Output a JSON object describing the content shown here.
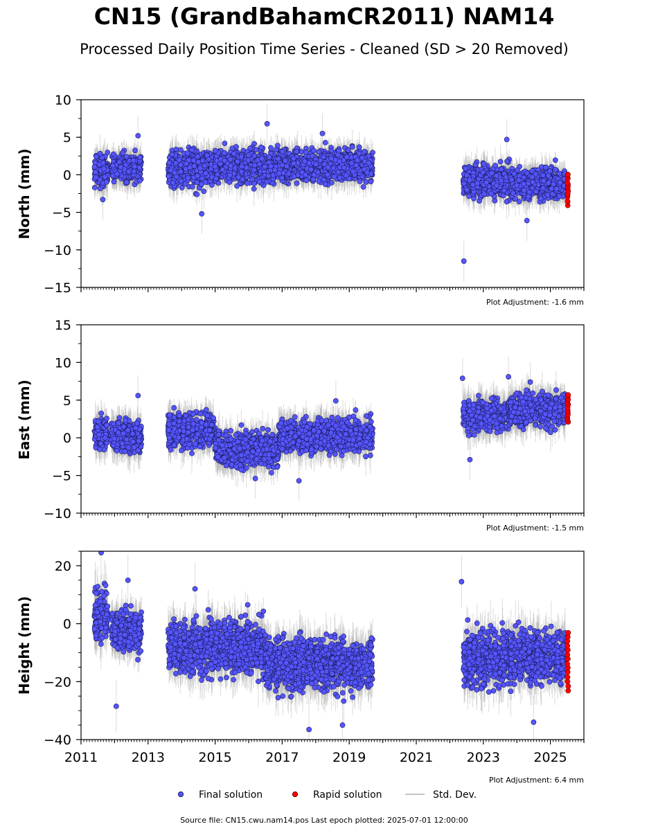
{
  "title": "CN15 (GrandBahamCR2011) NAM14",
  "subtitle": "Processed Daily Position Time Series - Cleaned (SD > 20 Removed)",
  "source_note": "Source file: CN15.cwu.nam14.pos  Last epoch plotted: 2025-07-01 12:00:00",
  "legend": {
    "final": "Final solution",
    "rapid": "Rapid solution",
    "std": "Std. Dev."
  },
  "colors": {
    "final_fill": "#5555ff",
    "final_edge": "#1a1a55",
    "rapid_fill": "#ff0000",
    "rapid_edge": "#7a0000",
    "std_dev": "#b0b0b0",
    "axis": "#000000"
  },
  "chart_data": [
    {
      "type": "scatter",
      "ylabel": "North (mm)",
      "ylim": [
        -15,
        10
      ],
      "yticks": [
        -15,
        -10,
        -5,
        0,
        5,
        10
      ],
      "xlim": [
        2011,
        2026
      ],
      "adjustment": "Plot Adjustment: -1.6 mm",
      "segments": [
        {
          "from": 2011.4,
          "to": 2011.8,
          "mean": 0.5,
          "sd": 1.5,
          "err": 1.8
        },
        {
          "from": 2011.9,
          "to": 2012.8,
          "mean": 0.8,
          "sd": 1.2,
          "err": 1.6
        },
        {
          "from": 2013.6,
          "to": 2015.0,
          "mean": 1.0,
          "sd": 1.6,
          "err": 1.6
        },
        {
          "from": 2015.0,
          "to": 2017.3,
          "mean": 1.2,
          "sd": 1.5,
          "err": 1.6
        },
        {
          "from": 2017.3,
          "to": 2019.7,
          "mean": 1.3,
          "sd": 1.4,
          "err": 1.6
        },
        {
          "from": 2022.4,
          "to": 2023.8,
          "mean": -0.8,
          "sd": 1.4,
          "err": 1.6
        },
        {
          "from": 2023.8,
          "to": 2025.45,
          "mean": -1.2,
          "sd": 1.3,
          "err": 1.6
        }
      ],
      "outliers": [
        {
          "x": 2016.55,
          "y": 6.8
        },
        {
          "x": 2018.2,
          "y": 5.5
        },
        {
          "x": 2014.6,
          "y": -5.2
        },
        {
          "x": 2022.42,
          "y": -11.5
        },
        {
          "x": 2023.7,
          "y": 4.7
        },
        {
          "x": 2024.3,
          "y": -6.1
        },
        {
          "x": 2012.7,
          "y": 5.2
        },
        {
          "x": 2011.65,
          "y": -3.3
        }
      ],
      "rapid": {
        "x": 2025.52,
        "from": -4.0,
        "to": 0.0
      }
    },
    {
      "type": "scatter",
      "ylabel": "East (mm)",
      "ylim": [
        -10,
        15
      ],
      "yticks": [
        -10,
        -5,
        0,
        5,
        10,
        15
      ],
      "xlim": [
        2011,
        2026
      ],
      "adjustment": "Plot Adjustment: -1.5 mm",
      "segments": [
        {
          "from": 2011.4,
          "to": 2011.8,
          "mean": 0.5,
          "sd": 1.4,
          "err": 1.8
        },
        {
          "from": 2011.9,
          "to": 2012.8,
          "mean": 0.3,
          "sd": 1.4,
          "err": 1.8
        },
        {
          "from": 2013.6,
          "to": 2015.0,
          "mean": 1.0,
          "sd": 1.5,
          "err": 1.8
        },
        {
          "from": 2015.0,
          "to": 2016.9,
          "mean": -1.5,
          "sd": 1.5,
          "err": 1.8
        },
        {
          "from": 2016.9,
          "to": 2019.7,
          "mean": 0.3,
          "sd": 1.4,
          "err": 1.8
        },
        {
          "from": 2022.4,
          "to": 2023.8,
          "mean": 3.0,
          "sd": 1.4,
          "err": 1.8
        },
        {
          "from": 2023.8,
          "to": 2025.45,
          "mean": 3.7,
          "sd": 1.4,
          "err": 1.8
        }
      ],
      "outliers": [
        {
          "x": 2022.38,
          "y": 7.9
        },
        {
          "x": 2023.75,
          "y": 8.1
        },
        {
          "x": 2024.4,
          "y": 7.4
        },
        {
          "x": 2017.5,
          "y": -5.7
        },
        {
          "x": 2018.6,
          "y": 4.9
        },
        {
          "x": 2012.7,
          "y": 5.6
        },
        {
          "x": 2022.6,
          "y": -2.9
        },
        {
          "x": 2016.2,
          "y": -5.4
        }
      ],
      "rapid": {
        "x": 2025.52,
        "from": 2.0,
        "to": 5.8
      }
    },
    {
      "type": "scatter",
      "ylabel": "Height (mm)",
      "ylim": [
        -40,
        25
      ],
      "yticks": [
        -40,
        -20,
        0,
        20
      ],
      "xlim": [
        2011,
        2026
      ],
      "xticks": [
        2011,
        2013,
        2015,
        2017,
        2019,
        2021,
        2023,
        2025
      ],
      "adjustment": "Plot Adjustment: 6.4 mm",
      "segments": [
        {
          "from": 2011.4,
          "to": 2011.8,
          "mean": 3.0,
          "sd": 6.0,
          "err": 6.0
        },
        {
          "from": 2011.9,
          "to": 2012.8,
          "mean": -2.0,
          "sd": 5.0,
          "err": 5.0
        },
        {
          "from": 2013.6,
          "to": 2016.5,
          "mean": -8.0,
          "sd": 6.0,
          "err": 6.0
        },
        {
          "from": 2016.5,
          "to": 2019.7,
          "mean": -14.0,
          "sd": 6.0,
          "err": 6.0
        },
        {
          "from": 2022.4,
          "to": 2023.8,
          "mean": -12.0,
          "sd": 6.5,
          "err": 6.0
        },
        {
          "from": 2023.8,
          "to": 2025.45,
          "mean": -11.0,
          "sd": 6.0,
          "err": 6.0
        }
      ],
      "outliers": [
        {
          "x": 2011.6,
          "y": 24.5
        },
        {
          "x": 2012.05,
          "y": -28.5
        },
        {
          "x": 2012.4,
          "y": 15.0
        },
        {
          "x": 2017.8,
          "y": -36.5
        },
        {
          "x": 2022.35,
          "y": 14.5
        },
        {
          "x": 2024.5,
          "y": -34.0
        },
        {
          "x": 2018.8,
          "y": -35.0
        },
        {
          "x": 2014.4,
          "y": 12.0
        }
      ],
      "rapid": {
        "x": 2025.52,
        "from": -23.0,
        "to": -3.0
      }
    }
  ]
}
